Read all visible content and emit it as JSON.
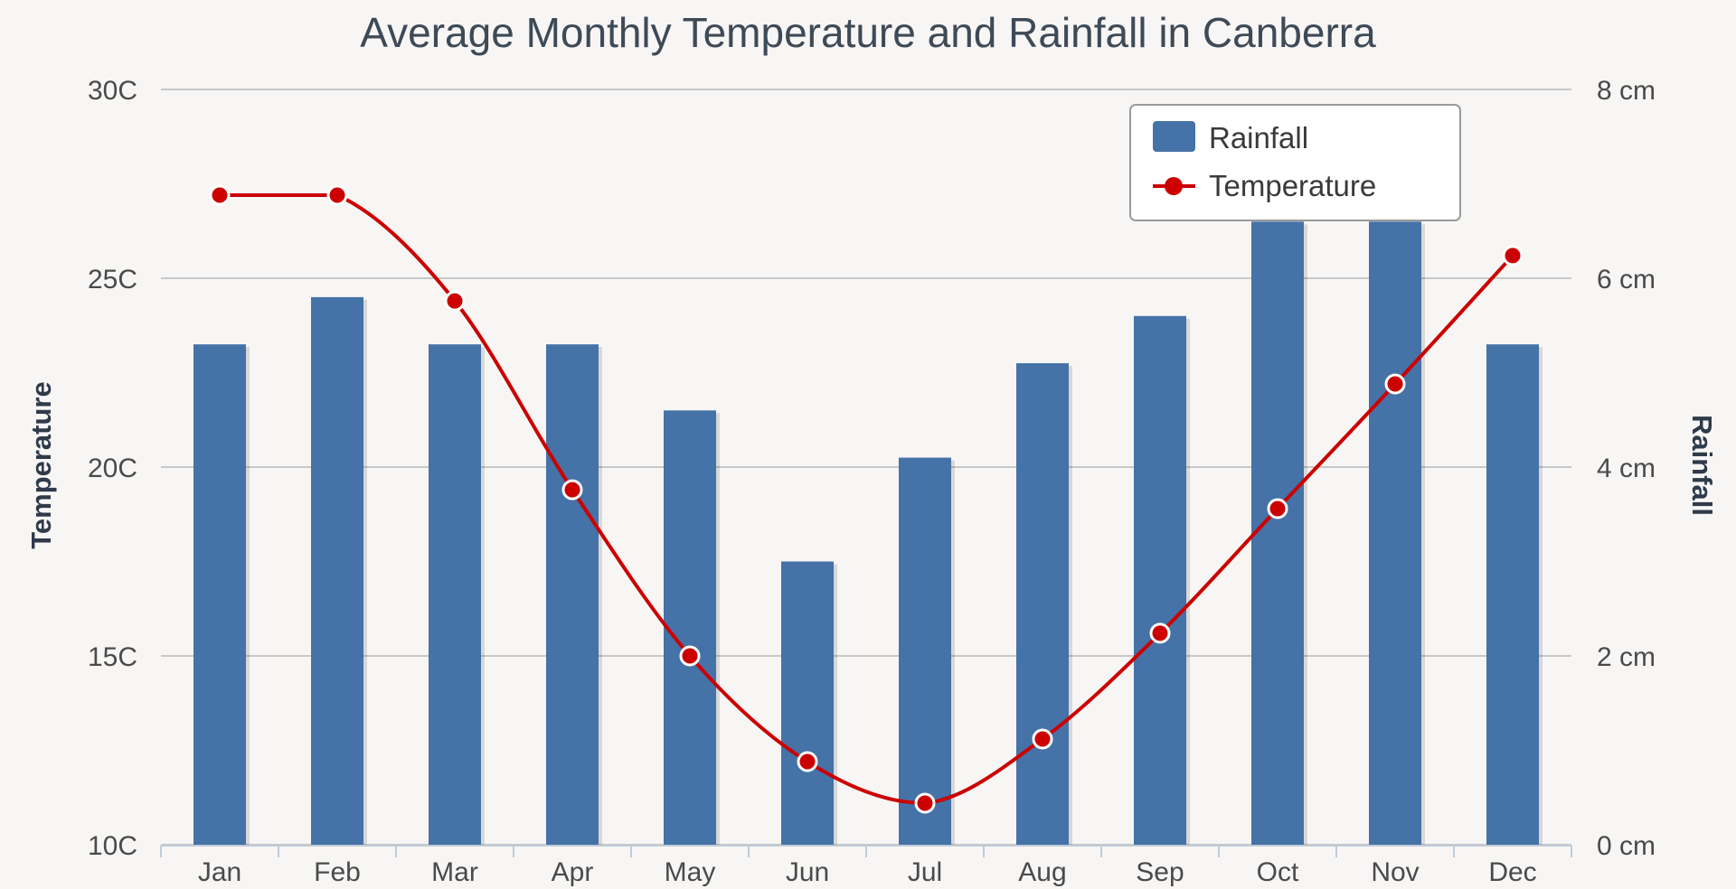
{
  "chart_data": {
    "type": "bar+line",
    "title": "Average Monthly Temperature and Rainfall in Canberra",
    "categories": [
      "Jan",
      "Feb",
      "Mar",
      "Apr",
      "May",
      "Jun",
      "Jul",
      "Aug",
      "Sep",
      "Oct",
      "Nov",
      "Dec"
    ],
    "series": [
      {
        "name": "Rainfall",
        "type": "bar",
        "axis": "right",
        "color": "#4572a7",
        "values": [
          5.3,
          5.8,
          5.3,
          5.3,
          4.6,
          3.0,
          4.1,
          5.1,
          5.6,
          6.6,
          6.6,
          5.3
        ]
      },
      {
        "name": "Temperature",
        "type": "line",
        "axis": "left",
        "color": "#cc0000",
        "values": [
          27.2,
          27.2,
          24.4,
          19.4,
          15.0,
          12.2,
          11.1,
          12.8,
          15.6,
          18.9,
          22.2,
          25.6
        ]
      }
    ],
    "left_axis": {
      "title": "Temperature",
      "range": [
        10,
        30
      ],
      "ticks": [
        10,
        15,
        20,
        25,
        30
      ],
      "tick_labels": [
        "10C",
        "15C",
        "20C",
        "25C",
        "30C"
      ]
    },
    "right_axis": {
      "title": "Rainfall",
      "range": [
        0,
        8
      ],
      "ticks": [
        0,
        2,
        4,
        6,
        8
      ],
      "tick_labels": [
        "0 cm",
        "2 cm",
        "4 cm",
        "6 cm",
        "8 cm"
      ]
    },
    "grid": true,
    "legend": {
      "position": "top-right",
      "items": [
        "Rainfall",
        "Temperature"
      ]
    }
  }
}
